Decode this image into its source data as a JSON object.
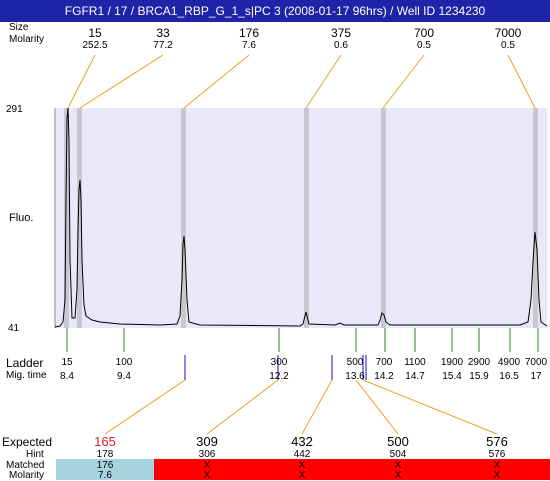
{
  "window": {
    "title": "FGFR1 / 17 / BRCA1_RBP_G_1_s|PC 3 (2008-01-17 96hrs) / Well ID 1234230"
  },
  "top_labels": {
    "size": "Size",
    "molarity": "Molarity"
  },
  "top_peaks": [
    {
      "size": "15",
      "molarity": "252.5"
    },
    {
      "size": "33",
      "molarity": "77.2"
    },
    {
      "size": "176",
      "molarity": "7.6"
    },
    {
      "size": "375",
      "molarity": "0.6"
    },
    {
      "size": "700",
      "molarity": "0.5"
    },
    {
      "size": "7000",
      "molarity": "0.5"
    }
  ],
  "axis": {
    "ymax": "291",
    "ymin": "41",
    "ylabel": "Fluo."
  },
  "ladder": {
    "label": "Ladder",
    "migtime_label": "Mig. time",
    "items": [
      {
        "size": "15",
        "time": "8.4"
      },
      {
        "size": "100",
        "time": "9.4"
      },
      {
        "size": "300",
        "time": "12.2"
      },
      {
        "size": "500",
        "time": "13.6"
      },
      {
        "size": "700",
        "time": "14.2"
      },
      {
        "size": "1100",
        "time": "14.7"
      },
      {
        "size": "1900",
        "time": "15.4"
      },
      {
        "size": "2900",
        "time": "15.9"
      },
      {
        "size": "4900",
        "time": "16.5"
      },
      {
        "size": "7000",
        "time": "17"
      }
    ]
  },
  "bottom": {
    "labels": {
      "expected": "Expected",
      "hint": "Hint",
      "matched": "Matched",
      "molarity": "Molarity"
    },
    "columns": [
      {
        "expected": "165",
        "hint": "178",
        "matched": "176",
        "molarity": "7.6",
        "status": "ok"
      },
      {
        "expected": "309",
        "hint": "306",
        "matched": "X",
        "molarity": "X",
        "status": "miss"
      },
      {
        "expected": "432",
        "hint": "442",
        "matched": "X",
        "molarity": "X",
        "status": "miss"
      },
      {
        "expected": "500",
        "hint": "504",
        "matched": "X",
        "molarity": "X",
        "status": "miss"
      },
      {
        "expected": "576",
        "hint": "576",
        "matched": "X",
        "molarity": "X",
        "status": "miss"
      }
    ]
  },
  "colors": {
    "title_bg": "#1d24a8",
    "plot_bg": "#e8e8f8",
    "band": "#c8c8d0",
    "orange": "#f0a020",
    "green": "#2a8a2a",
    "blue": "#1010cc",
    "red": "#ff0000",
    "light_blue": "#a8d4e0",
    "expected_red": "#e02020"
  }
}
